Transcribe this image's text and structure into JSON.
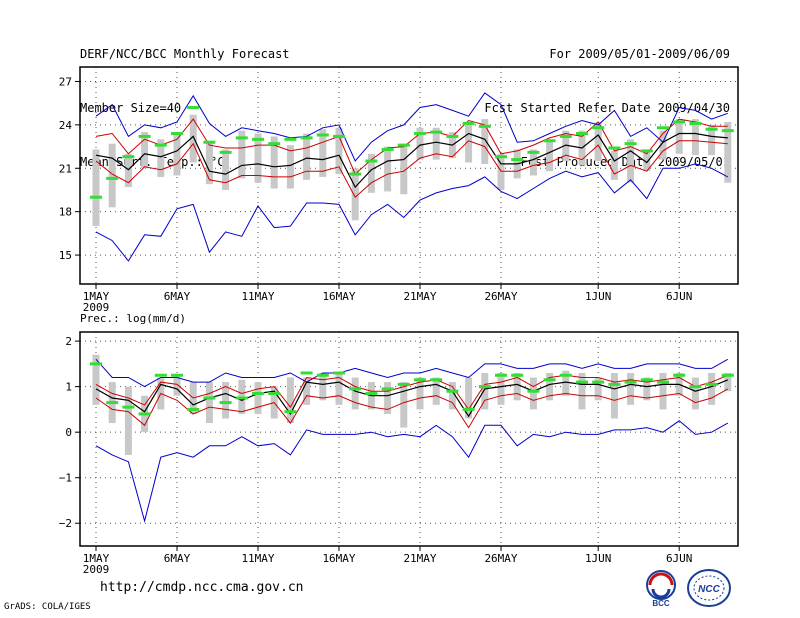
{
  "header": {
    "left": [
      "DERF/NCC/BCC Monthly Forecast",
      "Member Size=40",
      "Mean Surf. Temp.: °C"
    ],
    "right": [
      "For 2009/05/01-2009/06/09",
      "Fcst Started Refer Date 2009/04/30",
      "Fcst Produced Date 2009/05/01"
    ]
  },
  "footer": {
    "url": "http://cmdp.ncc.cma.gov.cn",
    "credit": "GrADS: COLA/IGES",
    "logo_bcc": "BCC",
    "logo_ncc": "NCC"
  },
  "colors": {
    "max_min": "#0000cc",
    "spread": "#cc0000",
    "mean": "#000000",
    "box": "#c8c8c8",
    "obs": "#33dd33",
    "grid": "#555555"
  },
  "chart_data": [
    {
      "type": "line",
      "title": "Mean Surf. Temp.: °C",
      "ylim": [
        13,
        28
      ],
      "yticks": [
        15,
        18,
        21,
        24,
        27
      ],
      "ytick_labels": [
        "15",
        "18",
        "21",
        "24",
        "27"
      ],
      "xtick_days": [
        1,
        6,
        11,
        16,
        21,
        26,
        32,
        37
      ],
      "xtick_labels": [
        "1MAY",
        "6MAY",
        "11MAY",
        "16MAY",
        "21MAY",
        "26MAY",
        "1JUN",
        "6JUN"
      ],
      "year_label": "2009",
      "days": [
        1,
        2,
        3,
        4,
        5,
        6,
        7,
        8,
        9,
        10,
        11,
        12,
        13,
        14,
        15,
        16,
        17,
        18,
        19,
        20,
        21,
        22,
        23,
        24,
        25,
        26,
        27,
        28,
        29,
        30,
        31,
        32,
        33,
        34,
        35,
        36,
        37,
        38,
        39,
        40
      ],
      "series": [
        {
          "name": "max",
          "values": [
            24.6,
            25.4,
            23.2,
            24.0,
            23.8,
            24.2,
            26.0,
            24.1,
            23.2,
            23.8,
            23.6,
            23.4,
            23.1,
            23.2,
            23.8,
            24.0,
            21.5,
            22.8,
            23.6,
            24.0,
            25.2,
            25.4,
            25.0,
            24.6,
            26.2,
            25.4,
            22.8,
            22.9,
            23.4,
            23.9,
            24.3,
            24.0,
            25.0,
            23.2,
            23.8,
            22.8,
            25.2,
            25.0,
            24.4,
            24.8
          ]
        },
        {
          "name": "spread_high",
          "values": [
            23.2,
            23.4,
            22.0,
            23.0,
            22.6,
            23.0,
            24.4,
            22.6,
            22.4,
            22.4,
            22.6,
            22.6,
            22.2,
            22.4,
            22.8,
            23.2,
            20.6,
            21.6,
            22.4,
            22.5,
            23.4,
            23.5,
            23.2,
            24.3,
            24.0,
            22.0,
            22.2,
            22.6,
            23.1,
            23.4,
            23.2,
            24.2,
            22.2,
            22.5,
            22.0,
            23.4,
            24.4,
            24.2,
            23.9,
            23.9
          ]
        },
        {
          "name": "mean",
          "values": [
            21.9,
            21.7,
            20.9,
            22.0,
            21.8,
            22.2,
            23.2,
            20.8,
            20.6,
            21.2,
            21.3,
            21.1,
            21.2,
            21.7,
            21.6,
            21.9,
            19.7,
            20.9,
            21.5,
            21.6,
            22.6,
            22.8,
            22.6,
            23.4,
            23.0,
            21.3,
            21.3,
            21.6,
            22.1,
            22.6,
            22.4,
            23.3,
            21.5,
            22.2,
            21.4,
            22.8,
            23.4,
            23.4,
            23.2,
            23.1
          ]
        },
        {
          "name": "spread_low",
          "values": [
            21.5,
            20.6,
            20.0,
            21.1,
            20.9,
            21.3,
            22.7,
            20.2,
            20.0,
            20.5,
            20.5,
            20.4,
            20.4,
            20.8,
            20.8,
            21.1,
            19.0,
            20.0,
            20.6,
            20.8,
            21.7,
            22.0,
            21.8,
            22.9,
            22.5,
            20.8,
            20.8,
            21.2,
            21.4,
            21.9,
            21.6,
            22.6,
            20.6,
            21.2,
            20.8,
            22.2,
            22.9,
            22.9,
            22.8,
            22.7
          ]
        },
        {
          "name": "min",
          "values": [
            16.6,
            16.0,
            14.6,
            16.4,
            16.3,
            18.2,
            18.5,
            15.2,
            16.6,
            16.3,
            18.4,
            16.9,
            17.0,
            18.6,
            18.6,
            18.5,
            16.4,
            17.8,
            18.5,
            17.6,
            18.8,
            19.3,
            19.6,
            19.8,
            20.4,
            19.4,
            18.9,
            19.6,
            20.3,
            20.8,
            20.4,
            20.7,
            19.3,
            20.2,
            18.9,
            21.0,
            21.0,
            21.3,
            21.0,
            20.4
          ]
        },
        {
          "name": "box_top",
          "values": [
            22.3,
            22.7,
            22.0,
            23.5,
            23.0,
            23.3,
            24.7,
            22.9,
            22.3,
            23.6,
            23.4,
            23.2,
            22.6,
            23.4,
            23.7,
            23.8,
            21.0,
            22.0,
            22.5,
            22.7,
            23.8,
            23.8,
            23.5,
            24.2,
            24.4,
            22.0,
            22.3,
            22.3,
            23.0,
            23.6,
            23.6,
            24.2,
            22.2,
            23.0,
            22.3,
            23.6,
            24.4,
            24.4,
            24.0,
            24.2
          ]
        },
        {
          "name": "box_bottom",
          "values": [
            17.0,
            18.3,
            19.7,
            21.0,
            20.4,
            20.5,
            21.4,
            19.9,
            19.5,
            20.3,
            20.0,
            19.6,
            19.6,
            20.2,
            20.4,
            20.6,
            17.4,
            19.3,
            19.4,
            19.2,
            21.6,
            21.6,
            21.7,
            21.4,
            21.3,
            19.5,
            20.3,
            20.5,
            20.8,
            21.5,
            21.2,
            21.5,
            20.2,
            20.0,
            20.8,
            21.6,
            22.0,
            21.9,
            21.9,
            20.0
          ]
        },
        {
          "name": "obs",
          "values": [
            19.0,
            20.3,
            21.8,
            23.2,
            22.6,
            23.4,
            25.2,
            22.8,
            22.1,
            23.1,
            23.0,
            22.7,
            23.0,
            23.1,
            23.3,
            23.2,
            20.6,
            21.5,
            22.3,
            22.6,
            23.4,
            23.5,
            23.2,
            24.1,
            23.9,
            21.8,
            21.6,
            22.1,
            22.9,
            23.2,
            23.4,
            23.8,
            22.4,
            22.7,
            22.2,
            23.8,
            24.2,
            24.1,
            23.7,
            23.6
          ]
        }
      ]
    },
    {
      "type": "line",
      "title": "Prec.: log(mm/d)",
      "ylim": [
        -2.5,
        2.2
      ],
      "yticks": [
        -2,
        -1,
        0,
        1,
        2
      ],
      "ytick_labels": [
        "−2",
        "−1",
        "0",
        "1",
        "2"
      ],
      "xtick_days": [
        1,
        6,
        11,
        16,
        21,
        26,
        32,
        37
      ],
      "xtick_labels": [
        "1MAY",
        "6MAY",
        "11MAY",
        "16MAY",
        "21MAY",
        "26MAY",
        "1JUN",
        "6JUN"
      ],
      "year_label": "2009",
      "days": [
        1,
        2,
        3,
        4,
        5,
        6,
        7,
        8,
        9,
        10,
        11,
        12,
        13,
        14,
        15,
        16,
        17,
        18,
        19,
        20,
        21,
        22,
        23,
        24,
        25,
        26,
        27,
        28,
        29,
        30,
        31,
        32,
        33,
        34,
        35,
        36,
        37,
        38,
        39,
        40
      ],
      "series": [
        {
          "name": "max",
          "values": [
            1.6,
            1.2,
            1.2,
            1.0,
            1.2,
            1.2,
            1.1,
            1.1,
            1.3,
            1.2,
            1.2,
            1.2,
            1.3,
            1.1,
            1.3,
            1.3,
            1.4,
            1.3,
            1.2,
            1.3,
            1.3,
            1.4,
            1.3,
            1.2,
            1.5,
            1.5,
            1.4,
            1.4,
            1.5,
            1.5,
            1.4,
            1.5,
            1.4,
            1.4,
            1.5,
            1.5,
            1.5,
            1.4,
            1.4,
            1.6
          ]
        },
        {
          "name": "spread_high",
          "values": [
            1.05,
            0.85,
            0.75,
            0.6,
            1.1,
            1.05,
            0.75,
            0.85,
            1.0,
            0.85,
            0.95,
            1.0,
            0.55,
            1.2,
            1.15,
            1.2,
            1.0,
            0.9,
            0.9,
            1.0,
            1.1,
            1.15,
            1.0,
            0.5,
            1.05,
            1.1,
            1.2,
            1.0,
            1.2,
            1.25,
            1.2,
            1.2,
            1.1,
            1.15,
            1.1,
            1.15,
            1.2,
            1.0,
            1.1,
            1.25
          ]
        },
        {
          "name": "mean",
          "values": [
            0.95,
            0.75,
            0.7,
            0.45,
            1.05,
            0.95,
            0.6,
            0.75,
            0.85,
            0.7,
            0.85,
            0.9,
            0.4,
            1.1,
            1.05,
            1.1,
            0.9,
            0.8,
            0.8,
            0.9,
            1.0,
            1.05,
            0.9,
            0.35,
            0.95,
            1.0,
            1.05,
            0.9,
            1.05,
            1.1,
            1.05,
            1.05,
            0.95,
            1.05,
            1.0,
            1.05,
            1.05,
            0.9,
            1.0,
            1.15
          ]
        },
        {
          "name": "spread_low",
          "values": [
            0.75,
            0.5,
            0.45,
            0.15,
            0.85,
            0.7,
            0.4,
            0.55,
            0.5,
            0.45,
            0.55,
            0.65,
            0.2,
            0.8,
            0.75,
            0.8,
            0.65,
            0.55,
            0.5,
            0.65,
            0.75,
            0.8,
            0.65,
            0.1,
            0.7,
            0.8,
            0.85,
            0.7,
            0.8,
            0.85,
            0.8,
            0.8,
            0.7,
            0.8,
            0.75,
            0.8,
            0.85,
            0.65,
            0.75,
            0.95
          ]
        },
        {
          "name": "min",
          "values": [
            -0.3,
            -0.5,
            -0.65,
            -1.95,
            -0.55,
            -0.45,
            -0.55,
            -0.3,
            -0.3,
            -0.1,
            -0.3,
            -0.25,
            -0.5,
            0.05,
            -0.05,
            -0.05,
            -0.05,
            0.0,
            -0.1,
            -0.05,
            -0.1,
            0.15,
            -0.1,
            -0.55,
            0.15,
            0.15,
            -0.3,
            -0.05,
            -0.1,
            0.0,
            -0.05,
            -0.05,
            0.05,
            0.05,
            0.1,
            0.0,
            0.25,
            -0.05,
            0.0,
            0.2
          ]
        },
        {
          "name": "box_top",
          "values": [
            1.7,
            1.1,
            1.0,
            0.8,
            1.2,
            1.25,
            1.1,
            1.1,
            1.1,
            1.15,
            1.1,
            1.0,
            1.2,
            1.2,
            1.3,
            1.3,
            1.2,
            1.1,
            1.1,
            1.1,
            1.2,
            1.2,
            1.1,
            1.2,
            1.3,
            1.3,
            1.3,
            1.2,
            1.3,
            1.35,
            1.3,
            1.2,
            1.3,
            1.3,
            1.2,
            1.3,
            1.3,
            1.2,
            1.3,
            1.3
          ]
        },
        {
          "name": "box_bottom",
          "values": [
            0.6,
            0.2,
            -0.5,
            0.0,
            0.5,
            0.8,
            0.4,
            0.2,
            0.3,
            0.4,
            0.4,
            0.3,
            0.2,
            0.6,
            0.7,
            0.6,
            0.5,
            0.5,
            0.4,
            0.1,
            0.5,
            0.6,
            0.5,
            0.3,
            0.5,
            0.6,
            0.7,
            0.5,
            0.7,
            0.8,
            0.5,
            0.7,
            0.3,
            0.6,
            0.7,
            0.5,
            0.8,
            0.5,
            0.6,
            0.9
          ]
        },
        {
          "name": "obs",
          "values": [
            1.5,
            0.65,
            0.55,
            0.4,
            1.25,
            1.25,
            0.5,
            0.75,
            0.65,
            0.75,
            0.85,
            0.85,
            0.45,
            1.3,
            1.25,
            1.3,
            0.95,
            0.85,
            0.95,
            1.05,
            1.15,
            1.15,
            0.9,
            0.5,
            1.0,
            1.25,
            1.25,
            0.9,
            1.15,
            1.25,
            1.1,
            1.1,
            1.05,
            1.1,
            1.15,
            1.1,
            1.25,
            1.0,
            1.05,
            1.25
          ]
        }
      ]
    }
  ]
}
